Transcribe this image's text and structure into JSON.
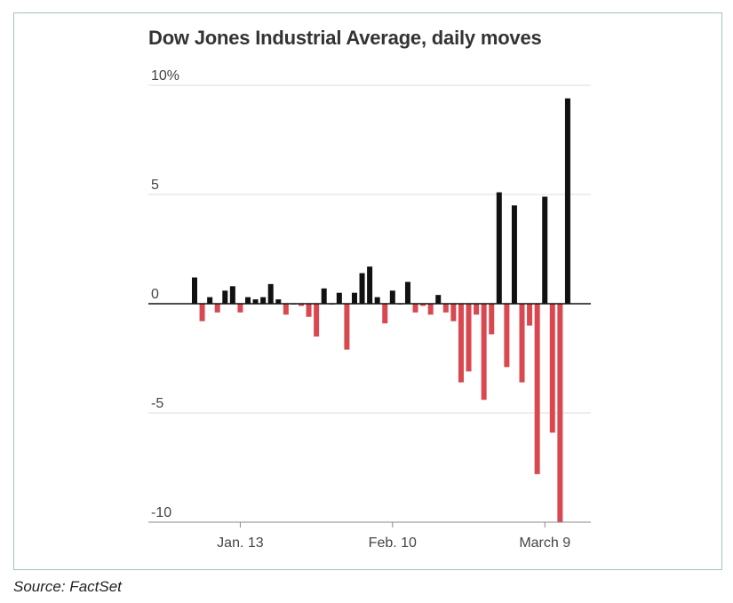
{
  "chart_data": {
    "type": "bar",
    "title": "Dow Jones Industrial Average, daily moves",
    "xlabel": "",
    "ylabel": "",
    "ylim": [
      -10,
      10
    ],
    "y_ticks": [
      {
        "value": 10,
        "label": "10%"
      },
      {
        "value": 5,
        "label": "5"
      },
      {
        "value": 0,
        "label": "0"
      },
      {
        "value": -5,
        "label": "-5"
      },
      {
        "value": -10,
        "label": "-10"
      }
    ],
    "x_ticks": [
      {
        "index": 6,
        "label": "Jan. 13"
      },
      {
        "index": 26,
        "label": "Feb. 10"
      },
      {
        "index": 46,
        "label": "March 9"
      }
    ],
    "grid": "horizontal",
    "positive_color": "#111111",
    "negative_color": "#d9474f",
    "values": [
      1.2,
      -0.8,
      0.3,
      -0.4,
      0.6,
      0.8,
      -0.4,
      0.3,
      0.2,
      0.3,
      0.9,
      0.2,
      -0.5,
      0.0,
      -0.1,
      -0.6,
      -1.5,
      0.7,
      0.0,
      0.5,
      -2.1,
      0.5,
      1.4,
      1.7,
      0.3,
      -0.9,
      0.6,
      0.0,
      1.0,
      -0.4,
      -0.1,
      -0.5,
      0.4,
      -0.4,
      -0.8,
      -3.6,
      -3.1,
      -0.5,
      -4.4,
      -1.4,
      5.1,
      -2.9,
      4.5,
      -3.6,
      -1.0,
      -7.8,
      4.9,
      -5.9,
      -10.0,
      9.4
    ]
  },
  "source": "Source: FactSet"
}
